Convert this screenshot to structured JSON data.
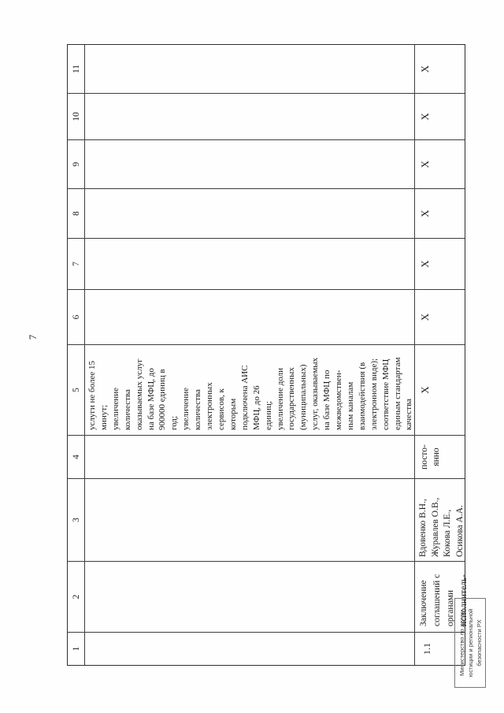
{
  "page_number": "7",
  "table": {
    "column_numbers": [
      "1",
      "2",
      "3",
      "4",
      "5",
      "6",
      "7",
      "8",
      "9",
      "10",
      "11"
    ],
    "continuation_row": {
      "col5_lines": [
        "услуги не более 15",
        "минут;",
        "увеличение",
        "количества",
        "оказываемых услуг",
        "на базе МФЦ, до",
        "900000 единиц в",
        "год;",
        "увеличение",
        "количества",
        "электронных",
        "сервисов, к",
        "которым",
        "подключена АИС",
        "МФЦ, до 26",
        "единиц;",
        "увеличение доли",
        "государственных",
        "(муниципальных)",
        "услуг, оказываемых",
        "на базе МФЦ по",
        "межведомствен-",
        "ным каналам",
        "взаимодействия (в",
        "электронном виде);",
        "соответствие МФЦ",
        "единым стандартам",
        "качества"
      ]
    },
    "row_1_1": {
      "number": "1.1",
      "activity_lines": [
        "Заключение",
        "соглашений с",
        "органами",
        "исполнитель-"
      ],
      "executors_lines": [
        "Вдовенко В.Н.,",
        "Журавлев О.В.,",
        "Кокова Л.Е.,",
        "Осикова А.А."
      ],
      "term_lines": [
        "посто-",
        "янно"
      ],
      "marks": [
        "Х",
        "Х",
        "Х",
        "Х",
        "Х",
        "Х",
        "Х"
      ]
    }
  },
  "stamp": {
    "lines": [
      "Министерство по делам",
      "юстиции и региональной",
      "безопасности РХ"
    ]
  }
}
